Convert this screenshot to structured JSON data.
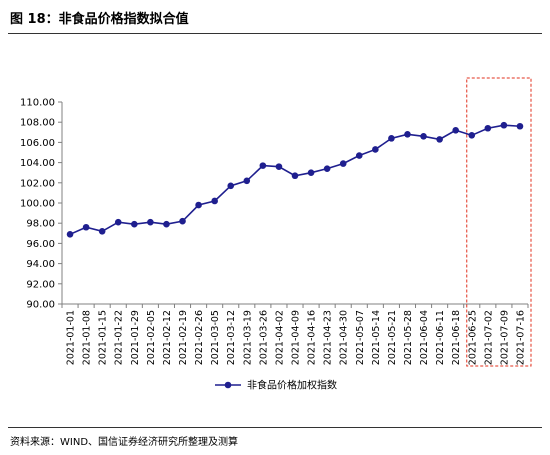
{
  "figure": {
    "title": "图 18：非食品价格指数拟合值",
    "source": "资料来源：WIND、国信证券经济研究所整理及测算"
  },
  "colors": {
    "series": "#1F1F8F",
    "highlight": "#E0301E",
    "axis": "#808080",
    "text": "#000000"
  },
  "chart_data": {
    "type": "line",
    "title": "",
    "xlabel": "",
    "ylabel": "",
    "ylim": [
      90,
      110
    ],
    "yticks": [
      "90.00",
      "92.00",
      "94.00",
      "96.00",
      "98.00",
      "100.00",
      "102.00",
      "104.00",
      "106.00",
      "108.00",
      "110.00"
    ],
    "grid": false,
    "legend": "bottom",
    "highlight_range": [
      "2021-06-25",
      "2021-07-16"
    ],
    "x": [
      "2021-01-01",
      "2021-01-08",
      "2021-01-15",
      "2021-01-22",
      "2021-01-29",
      "2021-02-05",
      "2021-02-12",
      "2021-02-19",
      "2021-02-26",
      "2021-03-05",
      "2021-03-12",
      "2021-03-19",
      "2021-03-26",
      "2021-04-02",
      "2021-04-09",
      "2021-04-16",
      "2021-04-23",
      "2021-04-30",
      "2021-05-07",
      "2021-05-14",
      "2021-05-21",
      "2021-05-28",
      "2021-06-04",
      "2021-06-11",
      "2021-06-18",
      "2021-06-25",
      "2021-07-02",
      "2021-07-09",
      "2021-07-16"
    ],
    "series": [
      {
        "name": "非食品价格加权指数",
        "values": [
          96.9,
          97.6,
          97.2,
          98.1,
          97.9,
          98.1,
          97.9,
          98.2,
          99.8,
          100.2,
          101.7,
          102.2,
          103.7,
          103.6,
          102.7,
          103.0,
          103.4,
          103.9,
          104.7,
          105.3,
          106.4,
          106.8,
          106.6,
          106.3,
          107.2,
          106.7,
          107.4,
          107.7,
          107.6
        ]
      }
    ]
  }
}
